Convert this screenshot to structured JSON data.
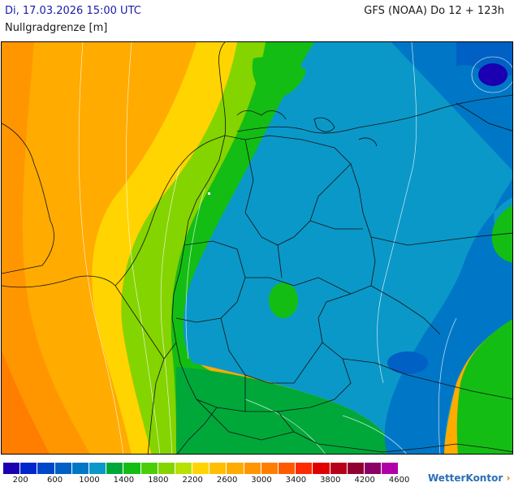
{
  "header": {
    "date_time": "Di, 17.03.2026 15:00 UTC",
    "model_run": "GFS (NOAA) Do 12 + 123h",
    "parameter": "Nullgradgrenze [m]"
  },
  "legend": {
    "colors": [
      "#1a00b0",
      "#0026cc",
      "#0046c8",
      "#0060c4",
      "#0077c6",
      "#0a98c8",
      "#00a83a",
      "#14bd14",
      "#4ccd0a",
      "#84d400",
      "#b8e000",
      "#ffd400",
      "#ffbf00",
      "#ffab00",
      "#ff9600",
      "#ff7e00",
      "#ff5a00",
      "#ff2a00",
      "#e00000",
      "#b8001a",
      "#900030",
      "#8a0064",
      "#b000a8"
    ],
    "tick_labels": [
      "200",
      "600",
      "1000",
      "1400",
      "1800",
      "2200",
      "2600",
      "3000",
      "3400",
      "3800",
      "4200",
      "4600"
    ]
  },
  "logo": {
    "text": "WetterKontor",
    "icon": "wetterkontor-logo-icon"
  }
}
